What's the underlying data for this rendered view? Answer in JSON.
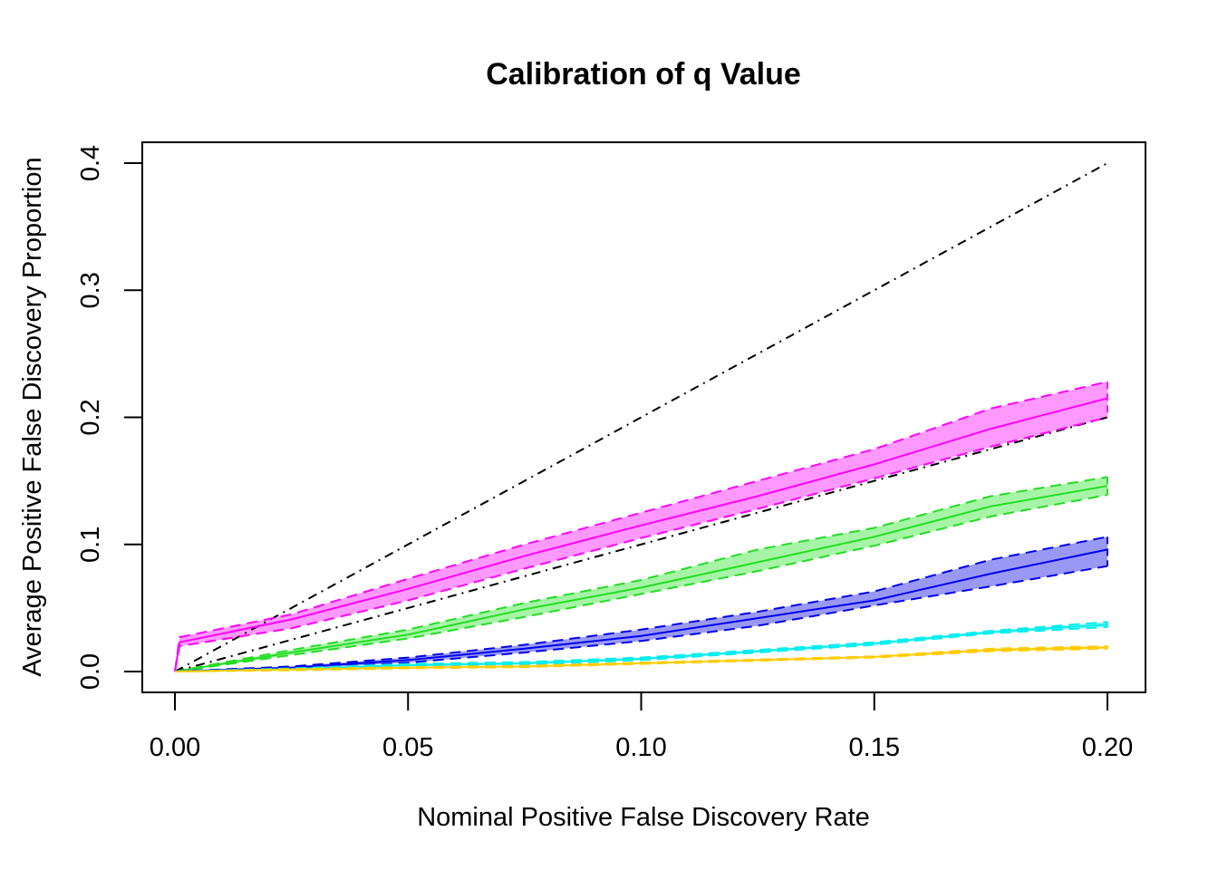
{
  "chart_data": {
    "type": "line",
    "title": "Calibration of q Value",
    "xlabel": "Nominal Positive False Discovery Rate",
    "ylabel": "Average Positive False Discovery Proportion",
    "xlim": [
      0.0,
      0.2
    ],
    "ylim": [
      0.0,
      0.4
    ],
    "x_ticks": [
      0.0,
      0.05,
      0.1,
      0.15,
      0.2
    ],
    "x_tick_labels": [
      "0.00",
      "0.05",
      "0.10",
      "0.15",
      "0.20"
    ],
    "y_ticks": [
      0.0,
      0.1,
      0.2,
      0.3,
      0.4
    ],
    "y_tick_labels": [
      "0.0",
      "0.1",
      "0.2",
      "0.3",
      "0.4"
    ],
    "grid": false,
    "legend": null,
    "reference_lines": [
      {
        "name": "y = 2x",
        "style": "dotdash",
        "color": "#000000",
        "points": [
          [
            0.0,
            0.0
          ],
          [
            0.2,
            0.4
          ]
        ]
      },
      {
        "name": "y = x",
        "style": "dotdash",
        "color": "#000000",
        "points": [
          [
            0.0,
            0.0
          ],
          [
            0.2,
            0.2
          ]
        ]
      }
    ],
    "x": [
      0.0,
      0.001,
      0.025,
      0.05,
      0.075,
      0.1,
      0.125,
      0.15,
      0.175,
      0.2
    ],
    "series": [
      {
        "name": "magenta",
        "color": "#ff00ff",
        "fill": "#ff99ff",
        "mean": [
          0.0,
          0.023,
          0.041,
          0.065,
          0.091,
          0.115,
          0.138,
          0.163,
          0.191,
          0.215
        ],
        "upper": [
          0.0,
          0.027,
          0.045,
          0.073,
          0.1,
          0.125,
          0.15,
          0.175,
          0.207,
          0.228
        ],
        "lower": [
          0.0,
          0.02,
          0.034,
          0.056,
          0.081,
          0.105,
          0.128,
          0.152,
          0.177,
          0.2
        ]
      },
      {
        "name": "green",
        "color": "#22dd22",
        "fill": "#a6f5a6",
        "mean": [
          0.0,
          0.0005,
          0.015,
          0.029,
          0.049,
          0.066,
          0.086,
          0.106,
          0.13,
          0.146
        ],
        "upper": [
          0.0,
          0.0007,
          0.017,
          0.033,
          0.054,
          0.072,
          0.096,
          0.113,
          0.138,
          0.153
        ],
        "lower": [
          0.0,
          0.0003,
          0.013,
          0.026,
          0.043,
          0.061,
          0.079,
          0.099,
          0.122,
          0.139
        ]
      },
      {
        "name": "blue",
        "color": "#0000ee",
        "fill": "#9999f5",
        "mean": [
          0.0,
          0.0002,
          0.003,
          0.009,
          0.018,
          0.028,
          0.042,
          0.056,
          0.077,
          0.096
        ],
        "upper": [
          0.0,
          0.0003,
          0.004,
          0.011,
          0.021,
          0.033,
          0.047,
          0.063,
          0.088,
          0.106
        ],
        "lower": [
          0.0,
          0.0001,
          0.002,
          0.007,
          0.015,
          0.024,
          0.036,
          0.052,
          0.067,
          0.083
        ]
      },
      {
        "name": "cyan",
        "color": "#00eeee",
        "fill": "#99f5f5",
        "mean": [
          0.0,
          0.0001,
          0.002,
          0.005,
          0.0065,
          0.01,
          0.016,
          0.022,
          0.031,
          0.037
        ],
        "upper": [
          0.0,
          0.0001,
          0.0025,
          0.006,
          0.0075,
          0.011,
          0.017,
          0.023,
          0.032,
          0.039
        ],
        "lower": [
          0.0,
          0.0001,
          0.0015,
          0.004,
          0.0055,
          0.009,
          0.015,
          0.021,
          0.03,
          0.035
        ]
      },
      {
        "name": "orange",
        "color": "#ffcc00",
        "fill": "#ffe066",
        "mean": [
          0.0,
          0.0,
          0.0015,
          0.003,
          0.004,
          0.0065,
          0.009,
          0.0115,
          0.017,
          0.019
        ],
        "upper": [
          0.0,
          0.0,
          0.002,
          0.0035,
          0.0045,
          0.007,
          0.0095,
          0.012,
          0.018,
          0.02
        ],
        "lower": [
          0.0,
          0.0,
          0.001,
          0.0025,
          0.0035,
          0.006,
          0.0085,
          0.011,
          0.016,
          0.018
        ]
      }
    ]
  }
}
